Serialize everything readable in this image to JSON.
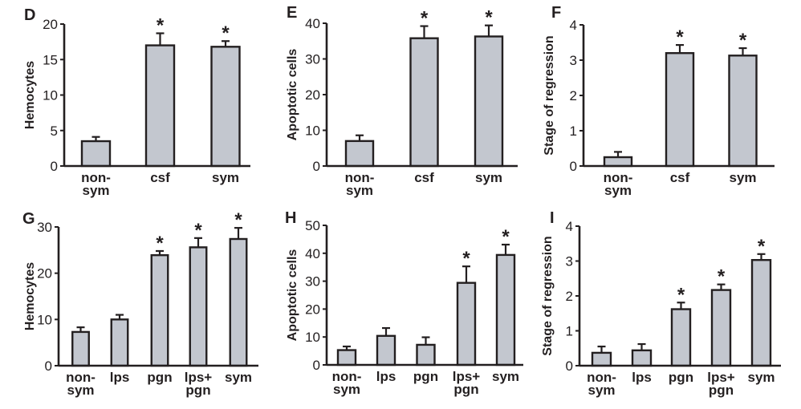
{
  "colors": {
    "bar_fill": "#c3c7cf",
    "ink": "#231f20",
    "background": "#ffffff"
  },
  "chart_data": [
    {
      "panel": "D",
      "type": "bar",
      "title": "",
      "xlabel": "",
      "ylabel": "Hemocytes",
      "ylim": [
        0,
        20
      ],
      "yticks": [
        "0",
        "5",
        "10",
        "15",
        "20"
      ],
      "categories": [
        [
          "non-",
          "sym"
        ],
        [
          "csf"
        ],
        [
          "sym"
        ]
      ],
      "values": [
        3.5,
        17.0,
        16.8
      ],
      "error": [
        0.6,
        1.7,
        0.8
      ],
      "significant": [
        false,
        true,
        true
      ],
      "significance_marker": "*"
    },
    {
      "panel": "E",
      "type": "bar",
      "title": "",
      "xlabel": "",
      "ylabel": "Apoptotic cells",
      "ylim": [
        0,
        40
      ],
      "yticks": [
        "0",
        "10",
        "20",
        "30",
        "40"
      ],
      "categories": [
        [
          "non-",
          "sym"
        ],
        [
          "csf"
        ],
        [
          "sym"
        ]
      ],
      "values": [
        7.0,
        35.8,
        36.3
      ],
      "error": [
        1.6,
        3.4,
        3.1
      ],
      "significant": [
        false,
        true,
        true
      ],
      "significance_marker": "*"
    },
    {
      "panel": "F",
      "type": "bar",
      "title": "",
      "xlabel": "",
      "ylabel": "Stage of regression",
      "ylim": [
        0,
        4
      ],
      "yticks": [
        "0",
        "1",
        "2",
        "3",
        "4"
      ],
      "categories": [
        [
          "non-",
          "sym"
        ],
        [
          "csf"
        ],
        [
          "sym"
        ]
      ],
      "values": [
        0.25,
        3.2,
        3.13
      ],
      "error": [
        0.15,
        0.23,
        0.21
      ],
      "significant": [
        false,
        true,
        true
      ],
      "significance_marker": "*"
    },
    {
      "panel": "G",
      "type": "bar",
      "title": "",
      "xlabel": "",
      "ylabel": "Hemocytes",
      "ylim": [
        0,
        30
      ],
      "yticks": [
        "0",
        "10",
        "20",
        "30"
      ],
      "categories": [
        [
          "non-",
          "sym"
        ],
        [
          "lps"
        ],
        [
          "pgn"
        ],
        [
          "lps+",
          "pgn"
        ],
        [
          "sym"
        ]
      ],
      "values": [
        7.3,
        10.0,
        23.9,
        25.6,
        27.4
      ],
      "error": [
        1.0,
        1.0,
        0.9,
        2.0,
        2.4
      ],
      "significant": [
        false,
        false,
        true,
        true,
        true
      ],
      "significance_marker": "*"
    },
    {
      "panel": "H",
      "type": "bar",
      "title": "",
      "xlabel": "",
      "ylabel": "Apoptotic cells",
      "ylim": [
        0,
        50
      ],
      "yticks": [
        "0",
        "10",
        "20",
        "30",
        "40",
        "50"
      ],
      "categories": [
        [
          "non-",
          "sym"
        ],
        [
          "lps"
        ],
        [
          "pgn"
        ],
        [
          "lps+",
          "pgn"
        ],
        [
          "sym"
        ]
      ],
      "values": [
        5.3,
        10.4,
        7.2,
        29.4,
        39.4
      ],
      "error": [
        1.3,
        2.8,
        2.7,
        5.9,
        3.7
      ],
      "significant": [
        false,
        false,
        false,
        true,
        true
      ],
      "significance_marker": "*"
    },
    {
      "panel": "I",
      "type": "bar",
      "title": "",
      "xlabel": "",
      "ylabel": "Stage of regression",
      "ylim": [
        0,
        4
      ],
      "yticks": [
        "0",
        "1",
        "2",
        "3",
        "4"
      ],
      "categories": [
        [
          "non-",
          "sym"
        ],
        [
          "lps"
        ],
        [
          "pgn"
        ],
        [
          "lps+",
          "pgn"
        ],
        [
          "sym"
        ]
      ],
      "values": [
        0.37,
        0.44,
        1.62,
        2.17,
        3.03
      ],
      "error": [
        0.18,
        0.18,
        0.19,
        0.16,
        0.17
      ],
      "significant": [
        false,
        false,
        true,
        true,
        true
      ],
      "significance_marker": "*"
    }
  ]
}
